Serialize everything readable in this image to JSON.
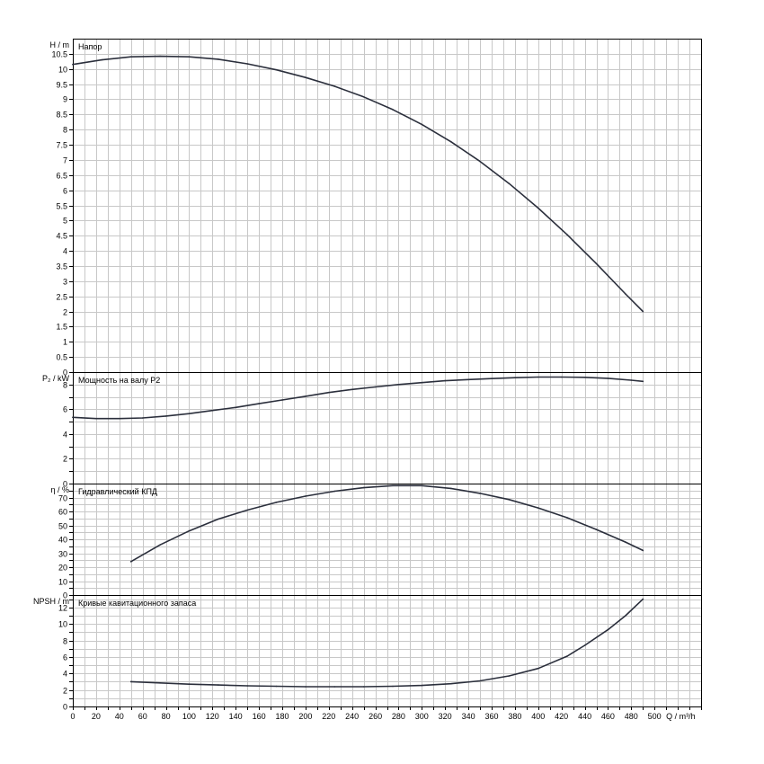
{
  "chart_data": {
    "type": "line",
    "x_label": {
      "symbol": "Q",
      "unit": "m³/h"
    },
    "x_range": [
      0,
      540
    ],
    "x_ticks": [
      0,
      20,
      40,
      60,
      80,
      100,
      120,
      140,
      160,
      180,
      200,
      220,
      240,
      260,
      280,
      300,
      320,
      340,
      360,
      380,
      400,
      420,
      440,
      460,
      480,
      500
    ],
    "grid": true,
    "curve_color": "#2b2f3c",
    "panels": [
      {
        "id": "head",
        "title": "Напор",
        "y_symbol": "H",
        "y_unit": "m",
        "y_range": [
          0,
          11
        ],
        "y_ticks": [
          0,
          0.5,
          1,
          1.5,
          2,
          2.5,
          3,
          3.5,
          4,
          4.5,
          5,
          5.5,
          6,
          6.5,
          7,
          7.5,
          8,
          8.5,
          9,
          9.5,
          10,
          10.5
        ],
        "y_tick_labels": [
          "0",
          "0.5",
          "1",
          "1.5",
          "2",
          "2.5",
          "3",
          "3.5",
          "4",
          "4.5",
          "5",
          "5.5",
          "6",
          "6.5",
          "7",
          "7.5",
          "8",
          "8.5",
          "9",
          "9.5",
          "10",
          "10.5"
        ],
        "series": [
          {
            "x": [
              0,
              25,
              50,
              75,
              100,
              125,
              150,
              175,
              200,
              225,
              250,
              275,
              300,
              325,
              350,
              375,
              400,
              425,
              450,
              475,
              490
            ],
            "y": [
              10.15,
              10.3,
              10.4,
              10.42,
              10.4,
              10.32,
              10.17,
              9.97,
              9.72,
              9.43,
              9.08,
              8.66,
              8.17,
              7.6,
              6.95,
              6.22,
              5.41,
              4.53,
              3.58,
              2.58,
              2.0
            ]
          }
        ]
      },
      {
        "id": "power",
        "title": "Мощность на валу P2",
        "y_symbol": "P₂",
        "y_unit": "kW",
        "y_range": [
          0,
          9
        ],
        "y_ticks": [
          0,
          1,
          2,
          3,
          4,
          5,
          6,
          7,
          8
        ],
        "y_tick_labels": [
          "0",
          "",
          "2",
          "",
          "4",
          "",
          "6",
          "",
          "8"
        ],
        "series": [
          {
            "x": [
              0,
              20,
              40,
              60,
              80,
              100,
              120,
              140,
              160,
              180,
              200,
              220,
              240,
              260,
              280,
              300,
              320,
              340,
              360,
              380,
              400,
              420,
              440,
              460,
              480,
              490
            ],
            "y": [
              5.35,
              5.25,
              5.25,
              5.3,
              5.45,
              5.65,
              5.9,
              6.15,
              6.45,
              6.75,
              7.05,
              7.35,
              7.6,
              7.8,
              8.0,
              8.15,
              8.3,
              8.4,
              8.48,
              8.55,
              8.6,
              8.6,
              8.58,
              8.5,
              8.35,
              8.25
            ]
          }
        ]
      },
      {
        "id": "efficiency",
        "title": "Гидравлический КПД",
        "y_symbol": "η",
        "y_unit": "%",
        "y_range": [
          0,
          80
        ],
        "y_ticks": [
          0,
          5,
          10,
          15,
          20,
          25,
          30,
          35,
          40,
          45,
          50,
          55,
          60,
          65,
          70,
          75
        ],
        "y_tick_labels": [
          "0",
          "",
          "10",
          "",
          "20",
          "",
          "30",
          "",
          "40",
          "",
          "50",
          "",
          "60",
          "",
          "70",
          ""
        ],
        "series": [
          {
            "x": [
              50,
              75,
              100,
              125,
              150,
              175,
              200,
              225,
              250,
              275,
              300,
              325,
              350,
              375,
              400,
              425,
              450,
              475,
              490
            ],
            "y": [
              24,
              36,
              46,
              54.5,
              61,
              66.5,
              71,
              74.5,
              77,
              78.5,
              78.5,
              76.5,
              73,
              68.5,
              62.5,
              55.5,
              47,
              38,
              32
            ]
          }
        ]
      },
      {
        "id": "npsh",
        "title": "Кривые кавитационного запаса",
        "y_symbol": "NPSH",
        "y_unit": "m",
        "y_range": [
          0,
          13.5
        ],
        "y_ticks": [
          0,
          1,
          2,
          3,
          4,
          5,
          6,
          7,
          8,
          9,
          10,
          11,
          12,
          13
        ],
        "y_tick_labels": [
          "0",
          "",
          "2",
          "",
          "4",
          "",
          "6",
          "",
          "8",
          "",
          "10",
          "",
          "12",
          ""
        ],
        "series": [
          {
            "x": [
              50,
              75,
              100,
              125,
              150,
              175,
              200,
              225,
              250,
              275,
              300,
              325,
              350,
              375,
              400,
              425,
              440,
              460,
              475,
              490
            ],
            "y": [
              3.0,
              2.85,
              2.7,
              2.6,
              2.5,
              2.45,
              2.4,
              2.4,
              2.4,
              2.45,
              2.55,
              2.75,
              3.1,
              3.7,
              4.6,
              6.1,
              7.4,
              9.3,
              11.0,
              13.0
            ]
          }
        ]
      }
    ]
  }
}
